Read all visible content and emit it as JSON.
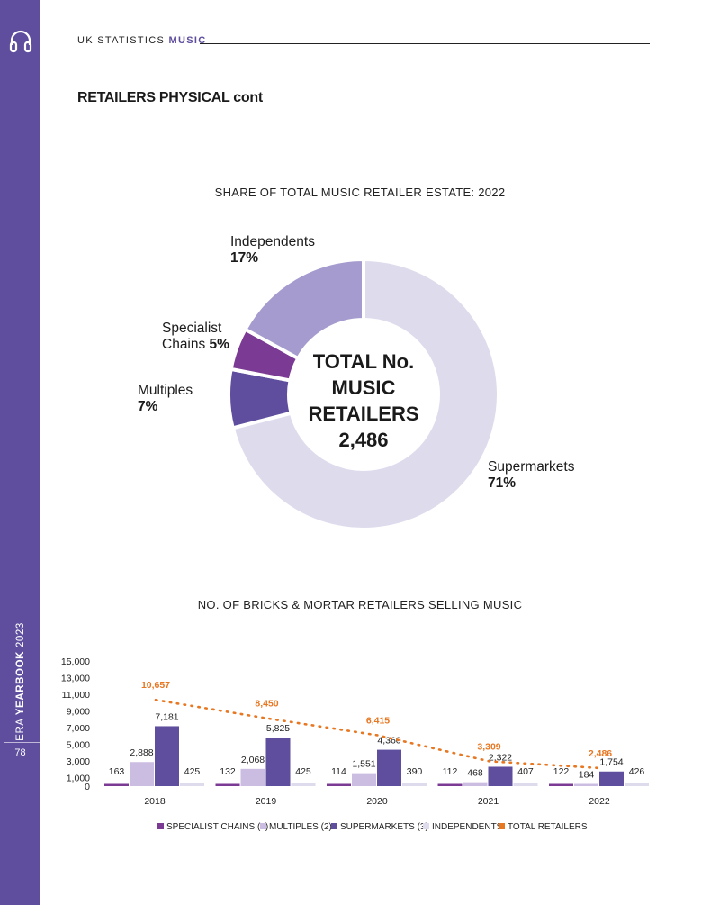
{
  "header": {
    "prefix": "UK STATISTICS",
    "section": "MUSIC"
  },
  "title": "RETAILERS PHYSICAL cont",
  "sidebar": {
    "publisher": "ERA",
    "yearbook": "YEARBOOK",
    "year": "2023",
    "page": "78"
  },
  "colors": {
    "sidebar": "#5f4e9e",
    "specialist": "#7b3a93",
    "multiples": "#cbbde1",
    "supermarkets": "#5f4e9e",
    "independents": "#dedbed",
    "independents_slice": "#a59bce",
    "total": "#e87722"
  },
  "donut": {
    "title": "SHARE OF TOTAL MUSIC RETAILER ESTATE: 2022",
    "center": [
      "TOTAL No.",
      "MUSIC",
      "RETAILERS",
      "2,486"
    ],
    "slices": [
      {
        "key": "supermarkets",
        "name": "Supermarkets",
        "label": "71%",
        "value": 71
      },
      {
        "key": "multiples",
        "name": "Multiples",
        "label": "7%",
        "value": 7
      },
      {
        "key": "specialist",
        "name": "Specialist Chains",
        "label": "5%",
        "value": 5
      },
      {
        "key": "independents",
        "name": "Independents",
        "label": "17%",
        "value": 17
      }
    ],
    "label_lines": {
      "independents": [
        "Independents"
      ],
      "specialist": [
        "Specialist",
        "Chains"
      ],
      "multiples": [
        "Multiples"
      ],
      "supermarkets": [
        "Supermarkets"
      ]
    }
  },
  "chart_data": [
    {
      "type": "pie",
      "title": "SHARE OF TOTAL MUSIC RETAILER ESTATE: 2022",
      "categories": [
        "Supermarkets",
        "Multiples",
        "Specialist Chains",
        "Independents"
      ],
      "values": [
        71,
        7,
        5,
        17
      ],
      "center_label": "TOTAL No. MUSIC RETAILERS 2,486"
    },
    {
      "type": "bar",
      "title": "NO. OF BRICKS & MORTAR RETAILERS SELLING MUSIC",
      "categories": [
        "2018",
        "2019",
        "2020",
        "2021",
        "2022"
      ],
      "ylim": [
        0,
        15000
      ],
      "yticks": [
        0,
        1000,
        3000,
        5000,
        7000,
        9000,
        11000,
        13000,
        15000
      ],
      "ytick_labels": [
        "0",
        "1,000",
        "3,000",
        "5,000",
        "7,000",
        "9,000",
        "11,000",
        "13,000",
        "15,000"
      ],
      "series": [
        {
          "key": "specialist",
          "name": "SPECIALIST CHAINS (1)",
          "values": [
            163,
            132,
            114,
            112,
            122
          ],
          "labels": [
            "163",
            "132",
            "114",
            "112",
            "122"
          ]
        },
        {
          "key": "multiples",
          "name": "MULTIPLES (2)",
          "values": [
            2888,
            2068,
            1551,
            468,
            184
          ],
          "labels": [
            "2,888",
            "2,068",
            "1,551",
            "468",
            "184"
          ]
        },
        {
          "key": "supermarkets",
          "name": "SUPERMARKETS (3)",
          "values": [
            7181,
            5825,
            4360,
            2322,
            1754
          ],
          "labels": [
            "7,181",
            "5,825",
            "4,360",
            "2,322",
            "1,754"
          ]
        },
        {
          "key": "independents",
          "name": "INDEPENDENTS",
          "values": [
            425,
            425,
            390,
            407,
            426
          ],
          "labels": [
            "425",
            "425",
            "390",
            "407",
            "426"
          ]
        }
      ],
      "line": {
        "key": "total",
        "name": "TOTAL RETAILERS",
        "values": [
          10657,
          8450,
          6415,
          3309,
          2486
        ],
        "labels": [
          "10,657",
          "8,450",
          "6,415",
          "3,309",
          "2,486"
        ],
        "style": "dotted"
      },
      "legend": "bottom"
    }
  ]
}
